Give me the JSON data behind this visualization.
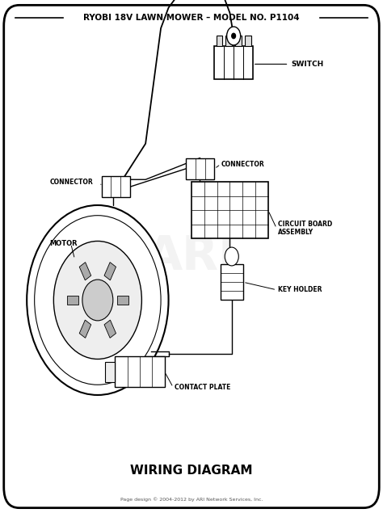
{
  "title": "RYOBI 18V LAWN MOWER – MODEL NO. P1104",
  "subtitle": "WIRING DIAGRAM",
  "footer": "Page design © 2004-2012 by ARI Network Services, Inc.",
  "bg_color": "#ffffff",
  "border_color": "#000000",
  "labels": {
    "switch": "SWITCH",
    "connector_left": "CONNECTOR",
    "connector_right": "CONNECTOR",
    "motor": "MOTOR",
    "circuit_board": "CIRCUIT BOARD\nASSEMBLY",
    "key_holder": "KEY HOLDER",
    "contact_plate": "CONTACT PLATE"
  }
}
